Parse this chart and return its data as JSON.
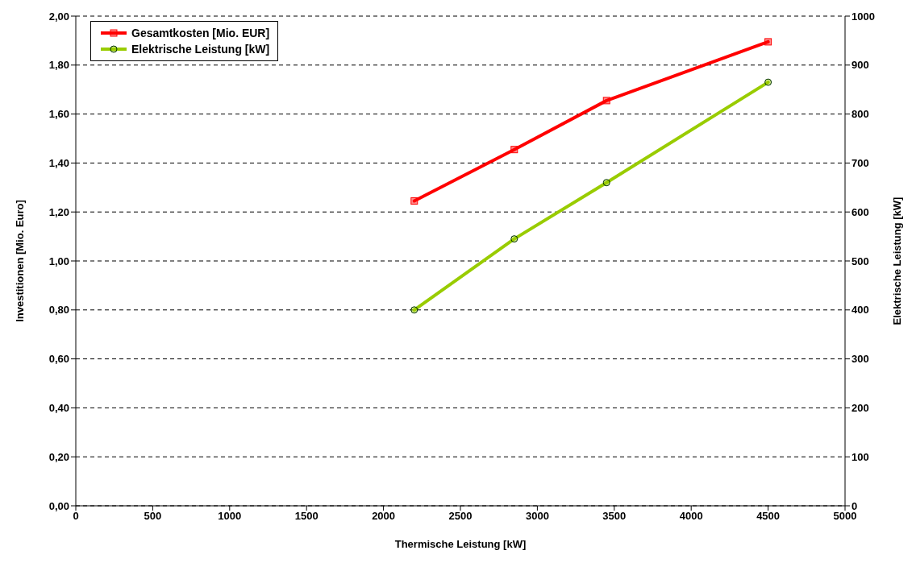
{
  "chart_data": {
    "type": "line",
    "xlabel": "Thermische Leistung [kW]",
    "ylabel": "Investitionen [Mio. Euro]",
    "y2label": "Elektrische Leistung [kW]",
    "x": [
      2200,
      2850,
      3450,
      4500
    ],
    "series": [
      {
        "name": "Gesamtkosten [Mio. EUR]",
        "color": "#ff0000",
        "marker": "square",
        "values": [
          1.245,
          1.455,
          1.655,
          1.895
        ]
      },
      {
        "name": "Elektrische Leistung [kW]",
        "color": "#99cc00",
        "marker": "circle",
        "axis": "y2",
        "values": [
          400,
          545,
          660,
          865
        ]
      }
    ],
    "xlim": [
      0,
      5000
    ],
    "xticks": [
      0,
      500,
      1000,
      1500,
      2000,
      2500,
      3000,
      3500,
      4000,
      4500,
      5000
    ],
    "ylim": [
      0,
      2
    ],
    "yticks": [
      {
        "value": 0,
        "label": "0,00"
      },
      {
        "value": 0.2,
        "label": "0,20"
      },
      {
        "value": 0.4,
        "label": "0,40"
      },
      {
        "value": 0.6,
        "label": "0,60"
      },
      {
        "value": 0.8,
        "label": "0,80"
      },
      {
        "value": 1,
        "label": "1,00"
      },
      {
        "value": 1.2,
        "label": "1,20"
      },
      {
        "value": 1.4,
        "label": "1,40"
      },
      {
        "value": 1.6,
        "label": "1,60"
      },
      {
        "value": 1.8,
        "label": "1,80"
      },
      {
        "value": 2,
        "label": "2,00"
      }
    ],
    "y2lim": [
      0,
      1000
    ],
    "y2ticks": [
      0,
      100,
      200,
      300,
      400,
      500,
      600,
      700,
      800,
      900,
      1000
    ],
    "grid": "y",
    "legend": "top left",
    "line_style": "solid"
  }
}
